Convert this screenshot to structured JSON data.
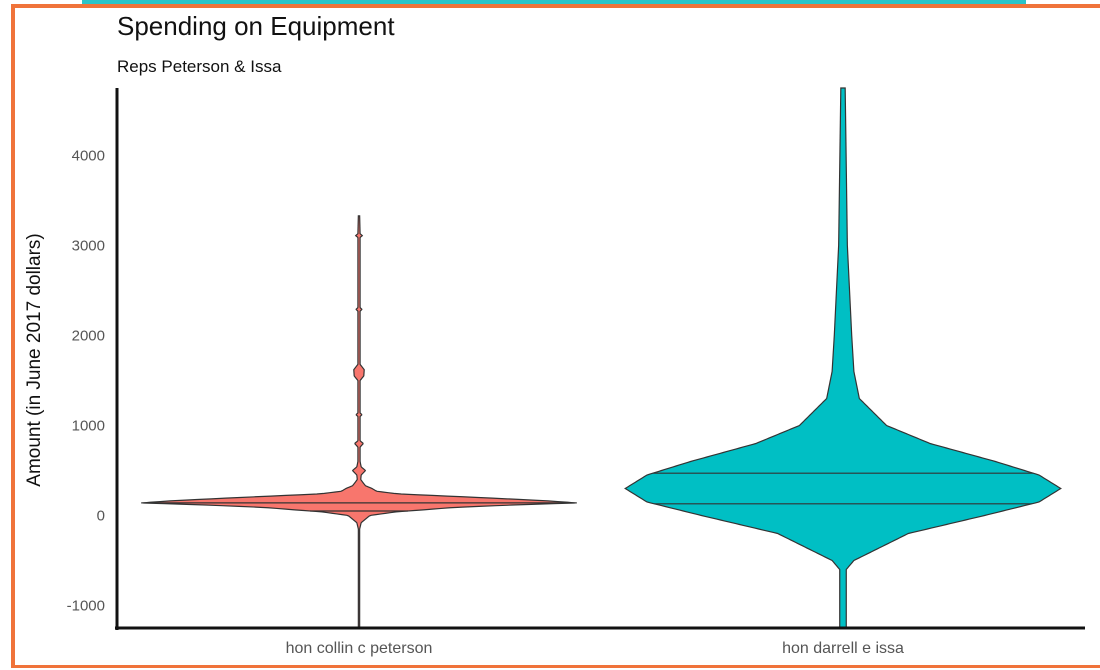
{
  "colors": {
    "frame": "#f0733a",
    "teal_strip": "#2bc4c8",
    "peterson": "#f8766d",
    "issa": "#00bfc4",
    "outline": "#333333"
  },
  "chart_data": {
    "type": "violin",
    "title": "Spending on Equipment",
    "subtitle": "Reps Peterson & Issa",
    "xlabel": "",
    "ylabel": "Amount (in June 2017 dollars)",
    "ylim": [
      -1250,
      4750
    ],
    "yticks": [
      -1000,
      0,
      1000,
      2000,
      3000,
      4000
    ],
    "ytick_labels": [
      "-1000",
      "0",
      "1000",
      "2000",
      "3000",
      "4000"
    ],
    "categories": [
      "hon collin c peterson",
      "hon darrell e issa"
    ],
    "grid": false,
    "legend": "none",
    "series": [
      {
        "category": "hon collin c peterson",
        "color": "#f8766d",
        "range": [
          -1250,
          3330
        ],
        "density_profile": [
          [
            -1250,
            0.003
          ],
          [
            -150,
            0.003
          ],
          [
            -80,
            0.01
          ],
          [
            0,
            0.05
          ],
          [
            40,
            0.17
          ],
          [
            60,
            0.28
          ],
          [
            90,
            0.44
          ],
          [
            120,
            0.74
          ],
          [
            140,
            1.0
          ],
          [
            165,
            0.85
          ],
          [
            200,
            0.55
          ],
          [
            240,
            0.18
          ],
          [
            270,
            0.08
          ],
          [
            300,
            0.06
          ],
          [
            330,
            0.03
          ],
          [
            360,
            0.02
          ],
          [
            400,
            0.008
          ],
          [
            450,
            0.01
          ],
          [
            500,
            0.03
          ],
          [
            540,
            0.01
          ],
          [
            600,
            0.005
          ],
          [
            760,
            0.005
          ],
          [
            800,
            0.02
          ],
          [
            830,
            0.005
          ],
          [
            1100,
            0.005
          ],
          [
            1120,
            0.014
          ],
          [
            1140,
            0.005
          ],
          [
            1500,
            0.005
          ],
          [
            1550,
            0.022
          ],
          [
            1620,
            0.024
          ],
          [
            1680,
            0.005
          ],
          [
            2270,
            0.005
          ],
          [
            2290,
            0.014
          ],
          [
            2310,
            0.005
          ],
          [
            3090,
            0.005
          ],
          [
            3110,
            0.016
          ],
          [
            3130,
            0.005
          ],
          [
            3330,
            0.003
          ]
        ],
        "quantile_lines": [
          50,
          140
        ]
      },
      {
        "category": "hon darrell e issa",
        "color": "#00bfc4",
        "range": [
          -1250,
          4750
        ],
        "density_profile": [
          [
            -1250,
            0.003
          ],
          [
            -600,
            0.003
          ],
          [
            -500,
            0.01
          ],
          [
            -200,
            0.06
          ],
          [
            0,
            0.13
          ],
          [
            150,
            0.18
          ],
          [
            300,
            0.2
          ],
          [
            450,
            0.18
          ],
          [
            600,
            0.14
          ],
          [
            800,
            0.08
          ],
          [
            1000,
            0.04
          ],
          [
            1300,
            0.015
          ],
          [
            1600,
            0.01
          ],
          [
            2000,
            0.008
          ],
          [
            3000,
            0.004
          ],
          [
            4750,
            0.002
          ]
        ],
        "quantile_lines": [
          130,
          470
        ]
      }
    ]
  }
}
